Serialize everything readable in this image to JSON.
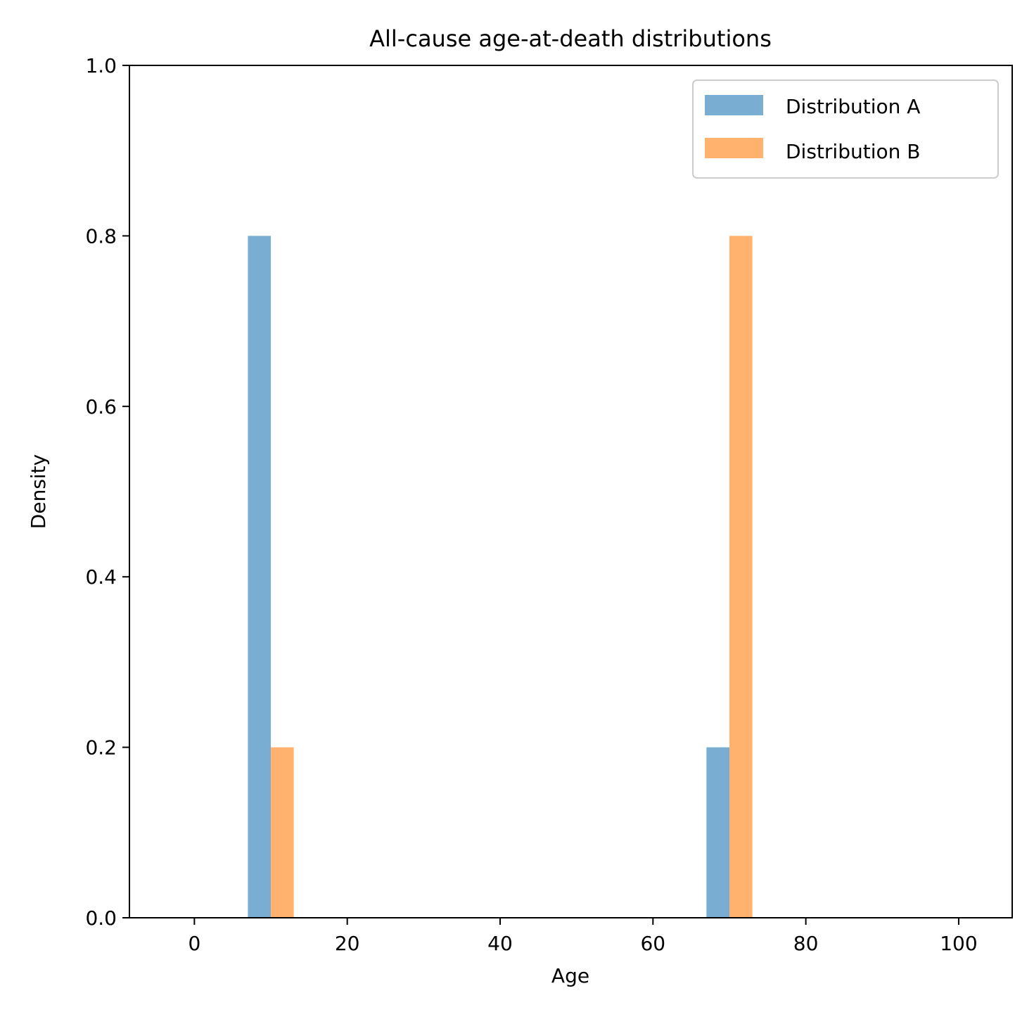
{
  "chart_data": {
    "type": "bar",
    "title": "All-cause age-at-death distributions",
    "xlabel": "Age",
    "ylabel": "Density",
    "xlim": [
      -8.5,
      107
    ],
    "ylim": [
      0,
      1.0
    ],
    "xticks": [
      0,
      20,
      40,
      60,
      80,
      100
    ],
    "xtick_labels": [
      "0",
      "20",
      "40",
      "60",
      "80",
      "100"
    ],
    "yticks": [
      0.0,
      0.2,
      0.4,
      0.6,
      0.8,
      1.0
    ],
    "ytick_labels": [
      "0.0",
      "0.2",
      "0.4",
      "0.6",
      "0.8",
      "1.0"
    ],
    "grid": false,
    "legend_position": "top-right",
    "series": [
      {
        "name": "Distribution A",
        "color": "#1f77b4",
        "alpha": 0.6,
        "bars": [
          {
            "x_start": 7,
            "x_end": 10,
            "value": 0.8
          },
          {
            "x_start": 67,
            "x_end": 70,
            "value": 0.2
          }
        ]
      },
      {
        "name": "Distribution B",
        "color": "#ff7f0e",
        "alpha": 0.6,
        "bars": [
          {
            "x_start": 10,
            "x_end": 13,
            "value": 0.2
          },
          {
            "x_start": 70,
            "x_end": 73,
            "value": 0.8
          }
        ]
      }
    ]
  }
}
